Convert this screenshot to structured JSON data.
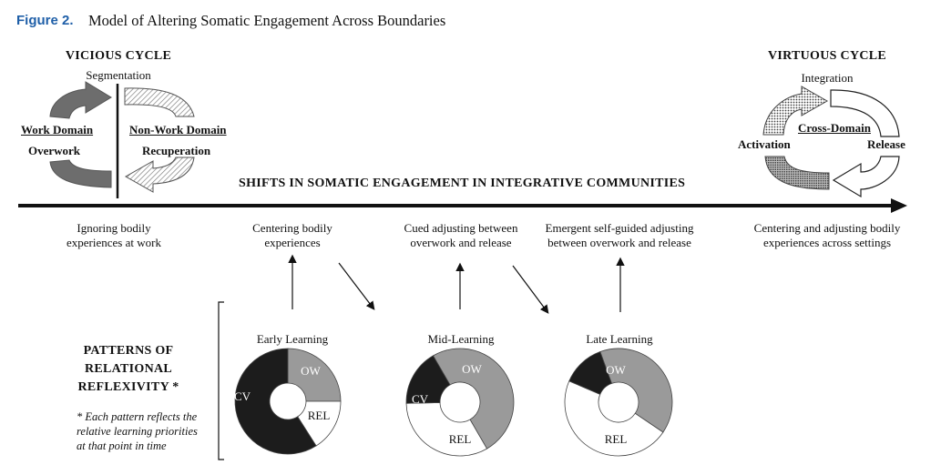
{
  "figure": {
    "label": "Figure 2.",
    "title": "Model of Altering Somatic Engagement Across Boundaries"
  },
  "vicious_cycle": {
    "title": "VICIOUS CYCLE",
    "top": "Segmentation",
    "left_domain": "Work Domain",
    "left_state": "Overwork",
    "right_domain": "Non-Work Domain",
    "right_state": "Recuperation"
  },
  "virtuous_cycle": {
    "title": "VIRTUOUS CYCLE",
    "top": "Integration",
    "center": "Cross-Domain",
    "left": "Activation",
    "right": "Release"
  },
  "timeline": {
    "title": "SHIFTS IN SOMATIC ENGAGEMENT IN INTEGRATIVE COMMUNITIES",
    "stages": [
      {
        "line1": "Ignoring bodily",
        "line2": "experiences at work"
      },
      {
        "line1": "Centering bodily",
        "line2": "experiences"
      },
      {
        "line1": "Cued adjusting between",
        "line2": "overwork and release"
      },
      {
        "line1": "Emergent self-guided adjusting",
        "line2": "between overwork and release"
      },
      {
        "line1": "Centering and adjusting bodily",
        "line2": "experiences across settings"
      }
    ]
  },
  "patterns": {
    "title_lines": [
      "PATTERNS OF",
      "RELATIONAL",
      "REFLEXIVITY *"
    ],
    "note_lines": [
      "* Each pattern reflects the",
      "relative learning priorities",
      "at that point in time"
    ]
  },
  "chart_data": {
    "type": "pie",
    "variant": "donut",
    "segment_labels": [
      "CV",
      "OW",
      "REL"
    ],
    "colors": {
      "CV": "#1c1c1c",
      "OW": "#9a9a9a",
      "REL": "#ffffff"
    },
    "charts": [
      {
        "title": "Early Learning",
        "values": {
          "CV": 0.59,
          "OW": 0.25,
          "REL": 0.16
        }
      },
      {
        "title": "Mid-Learning",
        "values": {
          "CV": 0.17,
          "OW": 0.5,
          "REL": 0.33
        }
      },
      {
        "title": "Late Learning",
        "values": {
          "CV": 0.13,
          "OW": 0.4,
          "REL": 0.47
        }
      }
    ]
  }
}
